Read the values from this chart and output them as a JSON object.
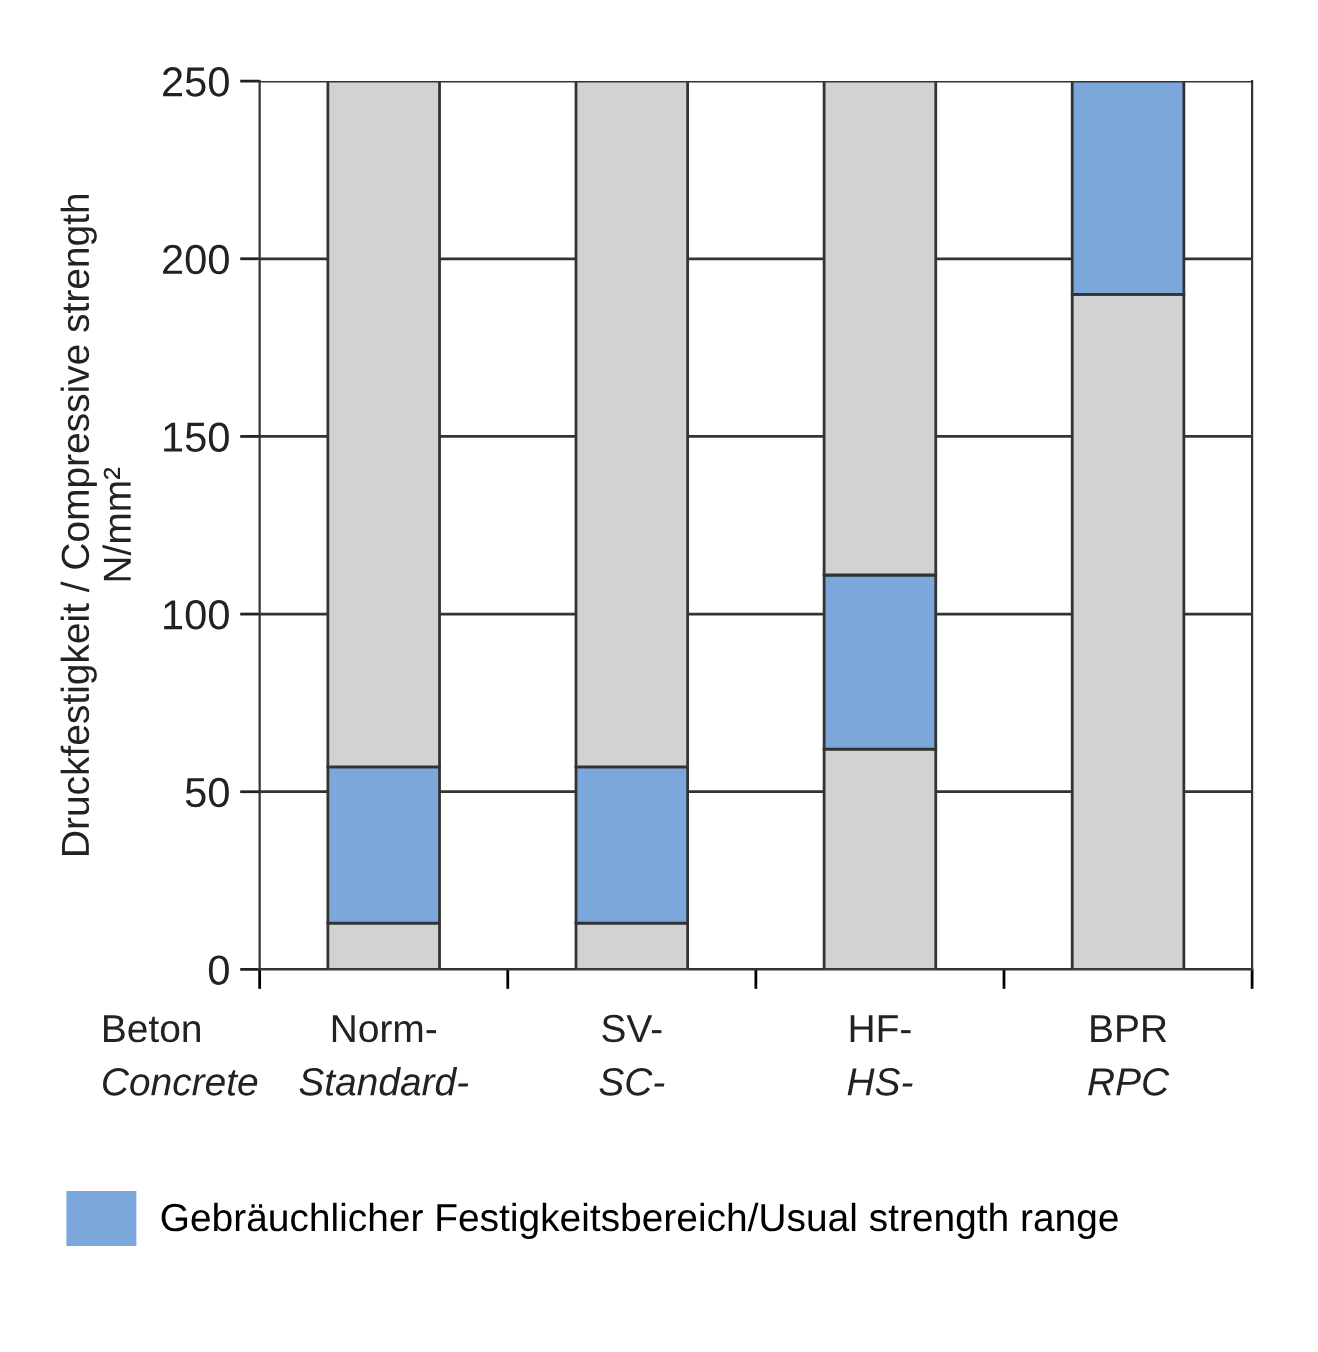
{
  "chart_data": {
    "type": "bar",
    "stacked": true,
    "ylabel": "Druckfestigkeit / Compressive strength\nN/mm²",
    "xlabel": "Beton\nConcrete",
    "categories": [
      "Norm-\nStandard-",
      "SV-\nSC-",
      "HF-\nHS-",
      "BPR\nRPC"
    ],
    "series": [
      {
        "color": "#d1d2d4",
        "values": [
          13,
          13,
          62,
          190
        ]
      },
      {
        "name": "Gebräuchlicher Festigkeitsbereich/Usual strength range",
        "color": "#7ba7da",
        "values": [
          44,
          44,
          49,
          60
        ]
      },
      {
        "color": "#d1d2d4",
        "values": [
          193,
          193,
          139,
          null
        ]
      }
    ],
    "ylim": [
      0,
      250
    ],
    "yticks": [
      0,
      50,
      100,
      150,
      200,
      250
    ],
    "grid": "y",
    "legend": "bottom"
  }
}
